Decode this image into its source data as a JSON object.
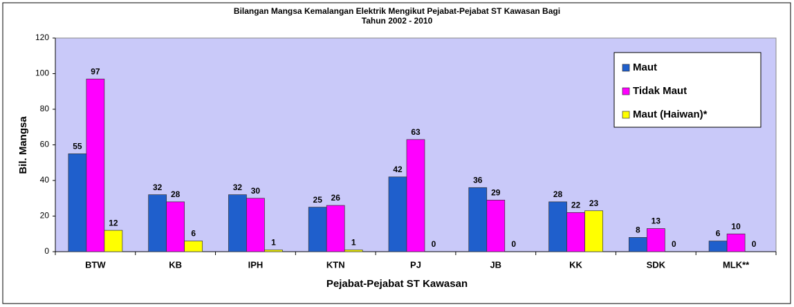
{
  "chart_data": {
    "type": "bar",
    "title": [
      "Bilangan Mangsa Kemalangan Elektrik Mengikut Pejabat-Pejabat ST Kawasan Bagi",
      "Tahun 2002 - 2010"
    ],
    "x_label": "Pejabat-Pejabat ST Kawasan",
    "y_label": "Bil. Mangsa",
    "categories": [
      "BTW",
      "KB",
      "IPH",
      "KTN",
      "PJ",
      "JB",
      "KK",
      "SDK",
      "MLK**"
    ],
    "series": [
      {
        "name": "Maut",
        "color": "#1f5fcc",
        "values": [
          55,
          32,
          32,
          25,
          42,
          36,
          28,
          8,
          6
        ]
      },
      {
        "name": "Tidak Maut",
        "color": "#ff00ff",
        "values": [
          97,
          28,
          30,
          26,
          63,
          29,
          22,
          13,
          10
        ]
      },
      {
        "name": "Maut (Haiwan)*",
        "color": "#ffff00",
        "values": [
          12,
          6,
          1,
          1,
          0,
          0,
          23,
          0,
          0
        ]
      }
    ],
    "ylim": [
      0,
      120
    ],
    "yticks": [
      0,
      20,
      40,
      60,
      80,
      100,
      120
    ],
    "grid": false,
    "legend": "upper right"
  }
}
